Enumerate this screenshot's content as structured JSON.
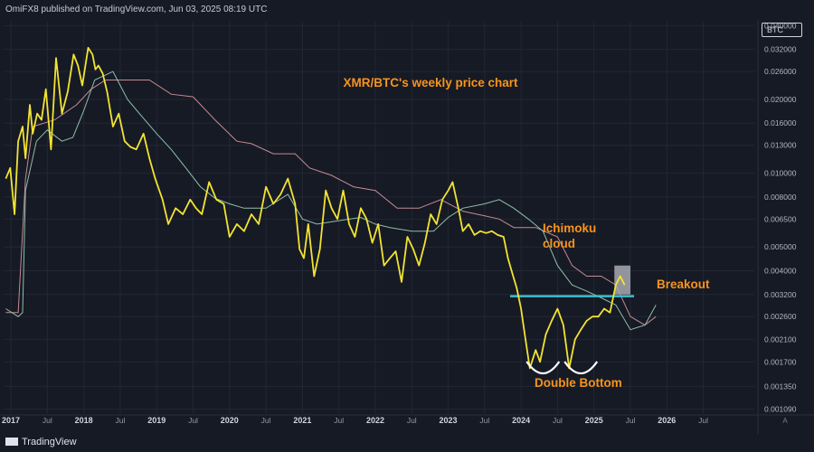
{
  "header": {
    "publisher_text": "OmiFX8 published on TradingView.com, Jun 03, 2025 08:19 UTC"
  },
  "footer": {
    "logo_text": "TradingView"
  },
  "symbol_badge": "BTC",
  "axis_mode_label": "A",
  "colors": {
    "background": "#161a25",
    "price": "#f3e332",
    "cloud_line_a": "#8fbfa6",
    "cloud_line_b": "#c48b93",
    "support": "#3ebfce",
    "annotation": "#f7941d",
    "highlight": "#a9a9b2"
  },
  "chart_data": {
    "type": "line",
    "title": "XMR/BTC's weekly price chart",
    "xlabel": "",
    "ylabel": "",
    "y_scale": "log",
    "y_ticks": [
      "0.040000",
      "0.032000",
      "0.026000",
      "0.020000",
      "0.016000",
      "0.013000",
      "0.010000",
      "0.008000",
      "0.006500",
      "0.005000",
      "0.004000",
      "0.003200",
      "0.002600",
      "0.002100",
      "0.001700",
      "0.001350",
      "0.001090"
    ],
    "x_ticks": [
      "2017",
      "Jul",
      "2018",
      "Jul",
      "2019",
      "Jul",
      "2020",
      "Jul",
      "2021",
      "Jul",
      "2022",
      "Jul",
      "2023",
      "Jul",
      "2024",
      "Jul",
      "2025",
      "Jul",
      "2026",
      "Jul"
    ],
    "x_tick_dates": [
      2017.0,
      2017.5,
      2018.0,
      2018.5,
      2019.0,
      2019.5,
      2020.0,
      2020.5,
      2021.0,
      2021.5,
      2022.0,
      2022.5,
      2023.0,
      2023.5,
      2024.0,
      2024.5,
      2025.0,
      2025.5,
      2026.0,
      2026.5
    ],
    "x_range": [
      2016.9,
      2027.2
    ],
    "ylim": [
      0.00105,
      0.0415
    ],
    "series": [
      {
        "role": "price",
        "x": [
          2016.93,
          2016.99,
          2017.05,
          2017.1,
          2017.16,
          2017.2,
          2017.26,
          2017.3,
          2017.36,
          2017.42,
          2017.48,
          2017.55,
          2017.62,
          2017.7,
          2017.78,
          2017.86,
          2017.92,
          2017.98,
          2018.06,
          2018.12,
          2018.16,
          2018.2,
          2018.26,
          2018.32,
          2018.4,
          2018.48,
          2018.56,
          2018.64,
          2018.72,
          2018.82,
          2018.9,
          2018.98,
          2019.08,
          2019.16,
          2019.26,
          2019.36,
          2019.46,
          2019.54,
          2019.62,
          2019.72,
          2019.82,
          2019.92,
          2020.0,
          2020.1,
          2020.2,
          2020.3,
          2020.4,
          2020.5,
          2020.6,
          2020.7,
          2020.8,
          2020.9,
          2020.96,
          2021.02,
          2021.08,
          2021.16,
          2021.24,
          2021.32,
          2021.4,
          2021.48,
          2021.56,
          2021.64,
          2021.72,
          2021.8,
          2021.88,
          2021.96,
          2022.04,
          2022.12,
          2022.2,
          2022.28,
          2022.36,
          2022.44,
          2022.52,
          2022.6,
          2022.68,
          2022.76,
          2022.84,
          2022.92,
          2023.0,
          2023.06,
          2023.14,
          2023.2,
          2023.28,
          2023.36,
          2023.44,
          2023.52,
          2023.6,
          2023.68,
          2023.76,
          2023.82,
          2023.88,
          2023.94,
          2024.0,
          2024.06,
          2024.12,
          2024.2,
          2024.26,
          2024.34,
          2024.42,
          2024.5,
          2024.58,
          2024.66,
          2024.74,
          2024.82,
          2024.9,
          2024.98,
          2025.06,
          2025.14,
          2025.22,
          2025.3,
          2025.36,
          2025.42
        ],
        "values": [
          0.0095,
          0.0105,
          0.0068,
          0.0135,
          0.0155,
          0.0115,
          0.019,
          0.0145,
          0.0175,
          0.0165,
          0.022,
          0.0125,
          0.0295,
          0.0175,
          0.0215,
          0.0305,
          0.0275,
          0.0228,
          0.0325,
          0.0305,
          0.0265,
          0.0275,
          0.0255,
          0.0215,
          0.0155,
          0.0175,
          0.0135,
          0.0128,
          0.0125,
          0.0145,
          0.0115,
          0.0095,
          0.0078,
          0.0062,
          0.0072,
          0.0068,
          0.0078,
          0.0072,
          0.0068,
          0.0092,
          0.0078,
          0.0075,
          0.0055,
          0.0062,
          0.0058,
          0.0068,
          0.0062,
          0.0088,
          0.0075,
          0.0082,
          0.0095,
          0.0075,
          0.0049,
          0.0045,
          0.0062,
          0.0038,
          0.0049,
          0.0085,
          0.0072,
          0.0065,
          0.0085,
          0.0062,
          0.0055,
          0.0072,
          0.0065,
          0.0052,
          0.0062,
          0.0042,
          0.0045,
          0.0048,
          0.0036,
          0.0055,
          0.0049,
          0.0042,
          0.0052,
          0.0068,
          0.0062,
          0.0078,
          0.0085,
          0.0092,
          0.0072,
          0.0058,
          0.0062,
          0.0056,
          0.0058,
          0.0057,
          0.0058,
          0.0056,
          0.0055,
          0.0045,
          0.0039,
          0.0034,
          0.0028,
          0.0021,
          0.0016,
          0.0019,
          0.0017,
          0.0022,
          0.0025,
          0.0028,
          0.0024,
          0.0016,
          0.0021,
          0.0023,
          0.0025,
          0.0026,
          0.0026,
          0.0028,
          0.0027,
          0.0035,
          0.0038,
          0.0035
        ]
      },
      {
        "role": "cloud-line-a",
        "x": [
          2016.93,
          2017.1,
          2017.16,
          2017.2,
          2017.35,
          2017.5,
          2017.7,
          2017.85,
          2018.0,
          2018.15,
          2018.4,
          2018.6,
          2018.8,
          2019.0,
          2019.2,
          2019.4,
          2019.6,
          2019.8,
          2020.0,
          2020.2,
          2020.5,
          2020.8,
          2021.0,
          2021.2,
          2021.5,
          2021.8,
          2022.0,
          2022.2,
          2022.5,
          2022.8,
          2023.0,
          2023.2,
          2023.5,
          2023.7,
          2023.9,
          2024.1,
          2024.3,
          2024.5,
          2024.7,
          2024.9,
          2025.1,
          2025.3,
          2025.5,
          2025.7,
          2025.85
        ],
        "values": [
          0.0028,
          0.0026,
          0.0027,
          0.0085,
          0.0135,
          0.015,
          0.0135,
          0.014,
          0.018,
          0.024,
          0.026,
          0.02,
          0.017,
          0.0145,
          0.0125,
          0.0105,
          0.0088,
          0.0079,
          0.0075,
          0.0072,
          0.0072,
          0.0082,
          0.0065,
          0.0062,
          0.0064,
          0.0066,
          0.0062,
          0.006,
          0.0058,
          0.0058,
          0.0066,
          0.0072,
          0.0075,
          0.0078,
          0.0072,
          0.0065,
          0.0058,
          0.0042,
          0.0035,
          0.0033,
          0.0031,
          0.0029,
          0.0023,
          0.0024,
          0.0029
        ]
      },
      {
        "role": "cloud-line-b",
        "x": [
          2016.93,
          2017.1,
          2017.2,
          2017.3,
          2017.6,
          2017.9,
          2018.1,
          2018.3,
          2018.6,
          2018.9,
          2019.2,
          2019.5,
          2019.8,
          2020.1,
          2020.3,
          2020.6,
          2020.9,
          2021.1,
          2021.4,
          2021.7,
          2022.0,
          2022.3,
          2022.6,
          2022.9,
          2023.2,
          2023.5,
          2023.7,
          2023.9,
          2024.2,
          2024.5,
          2024.7,
          2024.9,
          2025.1,
          2025.3,
          2025.5,
          2025.7,
          2025.85
        ],
        "values": [
          0.0027,
          0.0027,
          0.0095,
          0.0155,
          0.0165,
          0.019,
          0.022,
          0.024,
          0.024,
          0.024,
          0.021,
          0.0205,
          0.0165,
          0.0135,
          0.0132,
          0.012,
          0.012,
          0.0105,
          0.0098,
          0.0088,
          0.0085,
          0.0072,
          0.0072,
          0.0078,
          0.007,
          0.0067,
          0.0065,
          0.006,
          0.006,
          0.0055,
          0.0042,
          0.0038,
          0.0038,
          0.0035,
          0.0026,
          0.0024,
          0.0026
        ]
      }
    ],
    "annotations": [
      {
        "text": "Ichimoku cloud",
        "lines": [
          "Ichimoku",
          "cloud"
        ]
      },
      {
        "text": "Breakout"
      },
      {
        "text": "Double Bottom"
      }
    ],
    "support_level": {
      "value": 0.00315,
      "x_start": 2023.85,
      "x_end": 2025.55
    },
    "breakout_zone": {
      "x_start": 2025.28,
      "x_end": 2025.5,
      "y_low": 0.0032,
      "y_high": 0.0042
    },
    "bottoms": [
      2024.3,
      2024.82
    ],
    "grid": true,
    "legend": "none"
  }
}
